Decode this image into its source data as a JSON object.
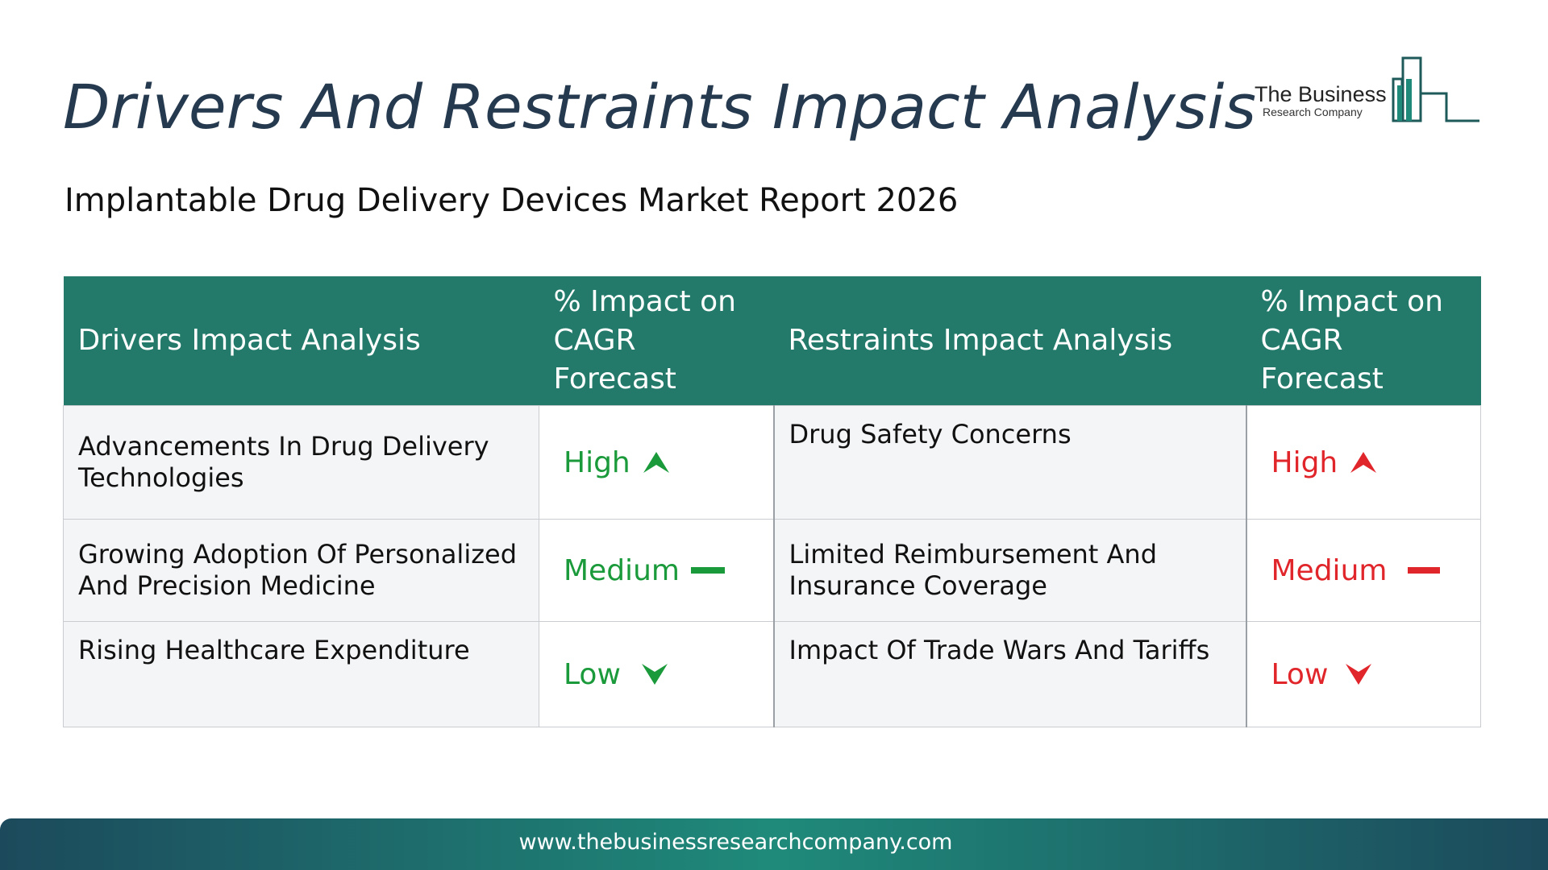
{
  "header": {
    "title": "Drivers And Restraints Impact Analysis",
    "subtitle": "Implantable Drug Delivery Devices Market Report 2026"
  },
  "logo": {
    "line1": "The Business",
    "line2": "Research Company",
    "color": "#1f8a7a"
  },
  "table": {
    "headers": {
      "drivers": "Drivers Impact Analysis",
      "drivers_impact": "% Impact on CAGR Forecast",
      "restraints": "Restraints Impact Analysis",
      "restraints_impact": "% Impact on CAGR Forecast"
    },
    "rows": [
      {
        "driver": "Advancements In Drug Delivery Technologies",
        "driver_impact": "High",
        "driver_icon": "arrow-up-icon",
        "restraint": "Drug Safety Concerns",
        "restraint_impact": "High",
        "restraint_icon": "arrow-up-icon"
      },
      {
        "driver": "Growing Adoption Of Personalized And Precision Medicine",
        "driver_impact": "Medium",
        "driver_icon": "dash-icon",
        "restraint": "Limited Reimbursement And Insurance Coverage",
        "restraint_impact": "Medium",
        "restraint_icon": "dash-icon"
      },
      {
        "driver": "Rising Healthcare Expenditure",
        "driver_impact": "Low",
        "driver_icon": "arrow-down-icon",
        "restraint": "Impact Of Trade Wars And Tariffs",
        "restraint_impact": "Low",
        "restraint_icon": "arrow-down-icon"
      }
    ],
    "colors": {
      "header_bg": "#237a6a",
      "driver_impact": "#1a9a3a",
      "restraint_impact": "#e1262b"
    }
  },
  "footer": {
    "url": "www.thebusinessresearchcompany.com"
  }
}
